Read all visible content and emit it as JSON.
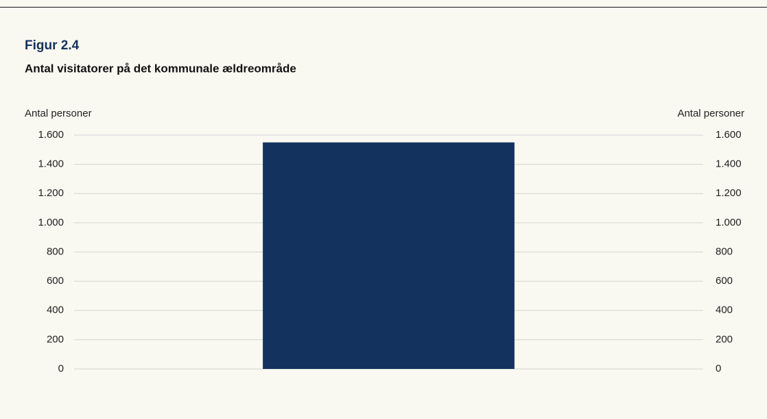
{
  "chart_data": {
    "type": "bar",
    "title": "Figur 2.4",
    "subtitle": "Antal visitatorer på det kommunale ældreområde",
    "ylabel": "Antal personer",
    "y2label": "Antal personer",
    "categories": [
      null
    ],
    "values": [
      1550
    ],
    "color": "#14325e",
    "ylim": [
      0,
      1600
    ],
    "yticks": [
      0,
      200,
      400,
      600,
      800,
      {
        "value": 1000,
        "label": "1.000"
      },
      {
        "value": 1200,
        "label": "1.200"
      },
      {
        "value": 1400,
        "label": "1.400"
      },
      {
        "value": 1600,
        "label": "1.600"
      }
    ],
    "y2lim": [
      0,
      1600
    ],
    "y2ticks": [
      0,
      200,
      400,
      600,
      800,
      {
        "value": 1000,
        "label": "1.000"
      },
      {
        "value": 1200,
        "label": "1.200"
      },
      {
        "value": 1400,
        "label": "1.400"
      },
      {
        "value": 1600,
        "label": "1.600"
      }
    ],
    "grid": true
  }
}
